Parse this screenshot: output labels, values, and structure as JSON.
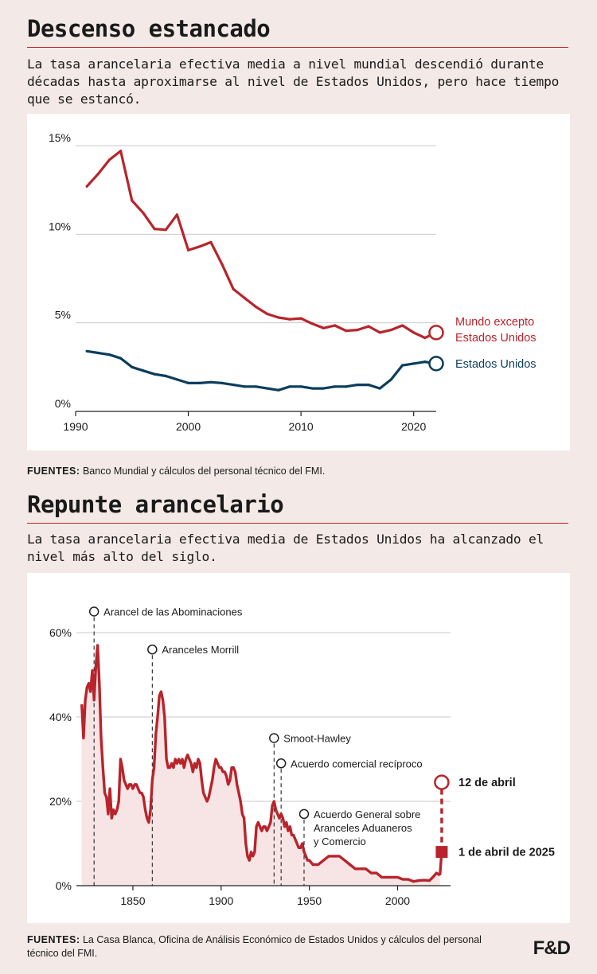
{
  "chart1": {
    "title": "Descenso estancado",
    "subtitle": "La tasa arancelaria efectiva media a nivel mundial descendió durante décadas hasta aproximarse al nivel de Estados Unidos, pero hace tiempo que se estancó.",
    "source_label": "FUENTES:",
    "source_text": " Banco Mundial y cálculos del personal técnico del FMI."
  },
  "chart2": {
    "title": "Repunte arancelario",
    "subtitle": "La tasa arancelaria efectiva media de Estados Unidos ha alcanzado el nivel más alto del siglo.",
    "source_label": "FUENTES:",
    "source_text": " La Casa Blanca, Oficina de Análisis Económico de Estados Unidos y cálculos del personal técnico del FMI."
  },
  "logo": "F&D",
  "chart_data": [
    {
      "type": "line",
      "title": "Descenso estancado",
      "xlim": [
        1990,
        2022
      ],
      "ylim": [
        0,
        15
      ],
      "x_ticks": [
        1990,
        2000,
        2010,
        2020
      ],
      "x_tick_labels": [
        "1990",
        "2000",
        "2010",
        "2020"
      ],
      "y_ticks": [
        0,
        5,
        10,
        15
      ],
      "y_tick_labels": [
        "0%",
        "5%",
        "10%",
        "15%"
      ],
      "grid": true,
      "colors": {
        "world": "#b8242b",
        "us": "#0c3d5c"
      },
      "series": [
        {
          "name": "Mundo excepto Estados Unidos",
          "label_lines": [
            "Mundo excepto",
            "Estados Unidos"
          ],
          "color": "#b8242b",
          "x": [
            1991,
            1992,
            1993,
            1994,
            1995,
            1996,
            1997,
            1998,
            1999,
            2000,
            2001,
            2002,
            2003,
            2004,
            2005,
            2006,
            2007,
            2008,
            2009,
            2010,
            2011,
            2012,
            2013,
            2014,
            2015,
            2016,
            2017,
            2018,
            2019,
            2020,
            2021,
            2022
          ],
          "values": [
            12.7,
            13.4,
            14.2,
            14.7,
            11.9,
            11.2,
            10.3,
            10.25,
            11.1,
            9.1,
            9.3,
            9.55,
            8.3,
            6.9,
            6.4,
            5.9,
            5.5,
            5.3,
            5.2,
            5.25,
            4.95,
            4.7,
            4.85,
            4.55,
            4.6,
            4.8,
            4.45,
            4.6,
            4.85,
            4.45,
            4.15,
            4.45
          ]
        },
        {
          "name": "Estados Unidos",
          "label_lines": [
            "Estados Unidos"
          ],
          "color": "#0c3d5c",
          "x": [
            1991,
            1992,
            1993,
            1994,
            1995,
            1996,
            1997,
            1998,
            1999,
            2000,
            2001,
            2002,
            2003,
            2004,
            2005,
            2006,
            2007,
            2008,
            2009,
            2010,
            2011,
            2012,
            2013,
            2014,
            2015,
            2016,
            2017,
            2018,
            2019,
            2020,
            2021,
            2022
          ],
          "values": [
            3.4,
            3.3,
            3.2,
            3.0,
            2.5,
            2.3,
            2.1,
            2.0,
            1.8,
            1.6,
            1.6,
            1.65,
            1.6,
            1.5,
            1.4,
            1.4,
            1.3,
            1.2,
            1.4,
            1.4,
            1.3,
            1.3,
            1.4,
            1.4,
            1.5,
            1.5,
            1.3,
            1.8,
            2.6,
            2.7,
            2.8,
            2.7
          ]
        }
      ]
    },
    {
      "type": "area",
      "title": "Repunte arancelario",
      "xlim": [
        1818,
        2030
      ],
      "ylim": [
        0,
        60
      ],
      "x_ticks": [
        1850,
        1900,
        1950,
        2000
      ],
      "x_tick_labels": [
        "1850",
        "1900",
        "1950",
        "2000"
      ],
      "y_ticks": [
        0,
        20,
        40,
        60
      ],
      "y_tick_labels": [
        "0%",
        "20%",
        "40%",
        "60%"
      ],
      "grid": true,
      "colors": {
        "line": "#b8242b",
        "fill": "#f7e4e4"
      },
      "series": [
        {
          "name": "",
          "color": "#b8242b",
          "x": [
            1821,
            1822,
            1823,
            1824,
            1825,
            1826,
            1827,
            1828,
            1829,
            1830,
            1831,
            1832,
            1833,
            1834,
            1835,
            1836,
            1837,
            1838,
            1839,
            1840,
            1841,
            1842,
            1843,
            1844,
            1845,
            1846,
            1847,
            1848,
            1849,
            1850,
            1851,
            1852,
            1853,
            1854,
            1855,
            1856,
            1857,
            1858,
            1859,
            1860,
            1861,
            1862,
            1863,
            1864,
            1865,
            1866,
            1867,
            1868,
            1869,
            1870,
            1871,
            1872,
            1873,
            1874,
            1875,
            1876,
            1877,
            1878,
            1879,
            1880,
            1881,
            1882,
            1883,
            1884,
            1885,
            1886,
            1887,
            1888,
            1889,
            1890,
            1891,
            1892,
            1893,
            1894,
            1895,
            1896,
            1897,
            1898,
            1899,
            1900,
            1901,
            1902,
            1903,
            1904,
            1905,
            1906,
            1907,
            1908,
            1909,
            1910,
            1911,
            1912,
            1913,
            1914,
            1915,
            1916,
            1917,
            1918,
            1919,
            1920,
            1921,
            1922,
            1923,
            1924,
            1925,
            1926,
            1927,
            1928,
            1929,
            1930,
            1931,
            1932,
            1933,
            1934,
            1935,
            1936,
            1937,
            1938,
            1939,
            1940,
            1941,
            1942,
            1943,
            1944,
            1945,
            1946,
            1947,
            1948,
            1949,
            1950,
            1952,
            1955,
            1958,
            1961,
            1964,
            1967,
            1970,
            1973,
            1976,
            1979,
            1982,
            1985,
            1988,
            1991,
            1994,
            1997,
            2000,
            2003,
            2006,
            2009,
            2012,
            2015,
            2018,
            2020,
            2022,
            2024
          ],
          "values": [
            43,
            35,
            44,
            47,
            48,
            46,
            51,
            44,
            52,
            57,
            48,
            35,
            28,
            22,
            21,
            17,
            23,
            16,
            18,
            17,
            18,
            20,
            30,
            28,
            25,
            24,
            23,
            24,
            24,
            23,
            24,
            24,
            23,
            22,
            22,
            21,
            18,
            16,
            15,
            18,
            25,
            28,
            36,
            40,
            45,
            46,
            44,
            40,
            30,
            28,
            28,
            29,
            28,
            30,
            29,
            30,
            29,
            30,
            28,
            30,
            31,
            30,
            29,
            27,
            29,
            28,
            30,
            29,
            25,
            22,
            21,
            20,
            21,
            23,
            25,
            28,
            30,
            29,
            28,
            28,
            27,
            27,
            26,
            24,
            25,
            28,
            28,
            27,
            24,
            22,
            20,
            17,
            16,
            10,
            7,
            6,
            8,
            7,
            8,
            14,
            15,
            14,
            13,
            14,
            14,
            13,
            14,
            15,
            19,
            20,
            18,
            17,
            16,
            17,
            16,
            14,
            15,
            13,
            14,
            12,
            12,
            11,
            10,
            9,
            9,
            10,
            8,
            7,
            6,
            6,
            5,
            5,
            6,
            7,
            7,
            7,
            6,
            5,
            4,
            4,
            4,
            3,
            3,
            2,
            2,
            2,
            2,
            1.5,
            1.5,
            1,
            1.2,
            1.3,
            1.2,
            2,
            3,
            2.5
          ],
          "annotations": [
            {
              "year": 1828,
              "value": 65,
              "lines": [
                "Arancel de las Abominaciones"
              ]
            },
            {
              "year": 1861,
              "value": 56,
              "lines": [
                "Aranceles Morrill"
              ]
            },
            {
              "year": 1930,
              "value": 35,
              "lines": [
                "Smoot-Hawley"
              ]
            },
            {
              "year": 1934,
              "value": 29,
              "lines": [
                "Acuerdo comercial recíproco"
              ]
            },
            {
              "year": 1947,
              "value": 17,
              "lines": [
                "Acuerdo General sobre",
                "Aranceles Aduaneros",
                "y Comercio"
              ]
            }
          ],
          "endpoints": [
            {
              "label": "1 de abril de 2025",
              "year": 2025,
              "value": 8,
              "marker": "square"
            },
            {
              "label": "12 de abril",
              "year": 2025,
              "value": 24.5,
              "marker": "circle"
            }
          ]
        }
      ]
    }
  ]
}
